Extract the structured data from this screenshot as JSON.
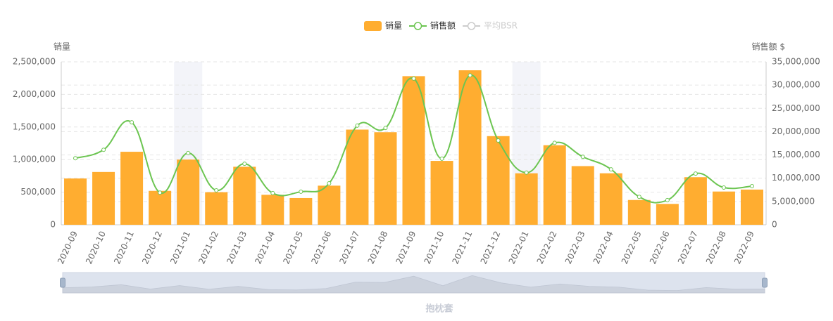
{
  "chart_data": {
    "type": "bar_line",
    "title": "抱枕套",
    "y_label": "销量",
    "y2_label": "销售额 $",
    "categories": [
      "2020-09",
      "2020-10",
      "2020-11",
      "2020-12",
      "2021-01",
      "2021-02",
      "2021-03",
      "2021-04",
      "2021-05",
      "2021-06",
      "2021-07",
      "2021-08",
      "2021-09",
      "2021-10",
      "2021-11",
      "2021-12",
      "2022-01",
      "2022-02",
      "2022-03",
      "2022-04",
      "2022-05",
      "2022-06",
      "2022-07",
      "2022-08",
      "2022-09"
    ],
    "highlight": [
      4,
      16
    ],
    "series": [
      {
        "name": "销量",
        "type": "bar",
        "color": "#ffad30",
        "values": [
          710000,
          810000,
          1120000,
          520000,
          1000000,
          500000,
          890000,
          460000,
          410000,
          600000,
          1460000,
          1420000,
          2280000,
          980000,
          2370000,
          1360000,
          790000,
          1220000,
          900000,
          790000,
          380000,
          320000,
          730000,
          510000,
          540000
        ]
      },
      {
        "name": "销售额",
        "type": "line",
        "axis": "y2",
        "color": "#6cc551",
        "values": [
          14300000,
          16100000,
          22000000,
          6900000,
          15400000,
          7400000,
          13100000,
          6800000,
          7100000,
          8900000,
          21300000,
          20800000,
          31400000,
          14200000,
          32100000,
          18100000,
          11200000,
          17600000,
          14600000,
          11900000,
          6000000,
          5300000,
          11000000,
          8000000,
          8300000
        ]
      },
      {
        "name": "平均BSR",
        "type": "line",
        "color": "#cccccc",
        "hidden": true
      }
    ],
    "ylim": [
      0,
      2500000
    ],
    "yticks": [
      0,
      {
        "value": 500000,
        "label": "500,000"
      },
      {
        "value": 1000000,
        "label": "1,000,000"
      },
      {
        "value": 1500000,
        "label": "1,500,000"
      },
      {
        "value": 2000000,
        "label": "2,000,000"
      },
      {
        "value": 2500000,
        "label": "2,500,000"
      }
    ],
    "y2lim": [
      0,
      35000000
    ],
    "y2ticks": [
      0,
      {
        "value": 5000000,
        "label": "5,000,000"
      },
      {
        "value": 10000000,
        "label": "10,000,000"
      },
      {
        "value": 15000000,
        "label": "15,000,000"
      },
      {
        "value": 20000000,
        "label": "20,000,000"
      },
      {
        "value": 25000000,
        "label": "25,000,000"
      },
      {
        "value": 30000000,
        "label": "30,000,000"
      },
      {
        "value": 35000000,
        "label": "35,000,000"
      }
    ],
    "grid": true
  }
}
